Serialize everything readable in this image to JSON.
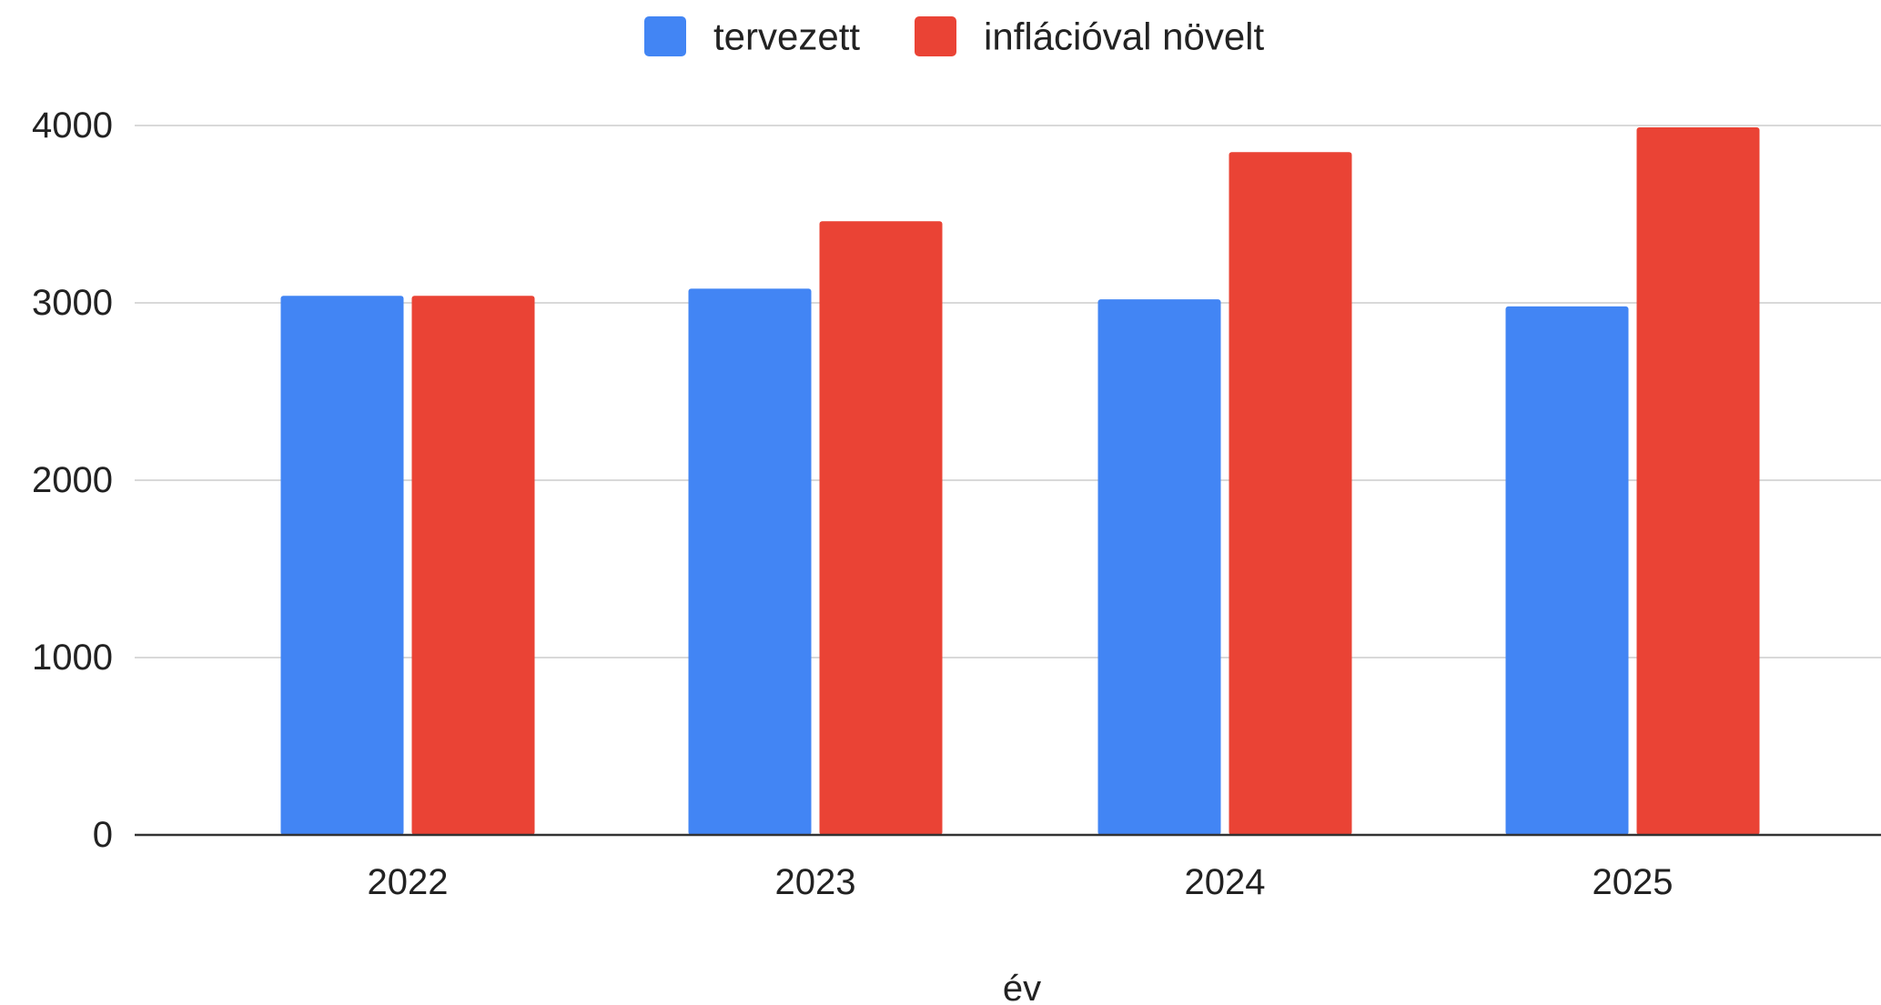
{
  "chart_data": {
    "type": "bar",
    "categories": [
      "2022",
      "2023",
      "2024",
      "2025"
    ],
    "series": [
      {
        "name": "tervezett",
        "color": "#4285f4",
        "values": [
          3040,
          3080,
          3020,
          2980
        ]
      },
      {
        "name": "inflációval növelt",
        "color": "#ea4335",
        "values": [
          3040,
          3460,
          3850,
          3990
        ]
      }
    ],
    "xlabel": "év",
    "ylabel": "",
    "ylim": [
      0,
      4000
    ],
    "yticks": [
      "0",
      "1000",
      "2000",
      "3000",
      "4000"
    ],
    "grid": true,
    "legend_position": "top"
  }
}
